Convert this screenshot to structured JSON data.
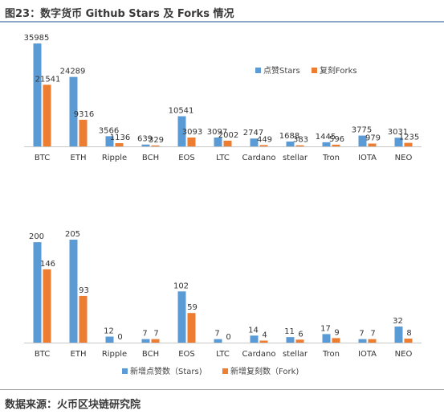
{
  "title": "图23：数字货币 Github Stars 及 Forks 情况",
  "source": "数据来源：火币区块链研究院",
  "colors": {
    "series1": "#5b9bd5",
    "series2": "#ed7d31"
  },
  "chart_data": [
    {
      "type": "bar",
      "categories": [
        "BTC",
        "ETH",
        "Ripple",
        "BCH",
        "EOS",
        "LTC",
        "Cardano",
        "stellar",
        "Tron",
        "IOTA",
        "NEO"
      ],
      "series": [
        {
          "name": "点赞Stars",
          "values": [
            35985,
            24289,
            3566,
            639,
            10541,
            3097,
            2747,
            1688,
            1445,
            3775,
            3031
          ]
        },
        {
          "name": "复刻Forks",
          "values": [
            21541,
            9316,
            1136,
            329,
            3093,
            2002,
            449,
            383,
            596,
            979,
            1235
          ]
        }
      ],
      "legend_position": "top-right",
      "ylim": [
        0,
        36000
      ],
      "grid": false
    },
    {
      "type": "bar",
      "categories": [
        "BTC",
        "ETH",
        "Ripple",
        "BCH",
        "EOS",
        "LTC",
        "Cardano",
        "stellar",
        "Tron",
        "IOTA",
        "NEO"
      ],
      "series": [
        {
          "name": "新增点赞数（Stars)",
          "values": [
            200,
            205,
            12,
            7,
            102,
            7,
            14,
            11,
            17,
            7,
            32
          ]
        },
        {
          "name": "新增复刻数（Fork)",
          "values": [
            146,
            93,
            0,
            7,
            59,
            0,
            4,
            6,
            9,
            7,
            8
          ]
        }
      ],
      "legend_position": "bottom",
      "ylim": [
        0,
        205
      ],
      "grid": false
    }
  ]
}
